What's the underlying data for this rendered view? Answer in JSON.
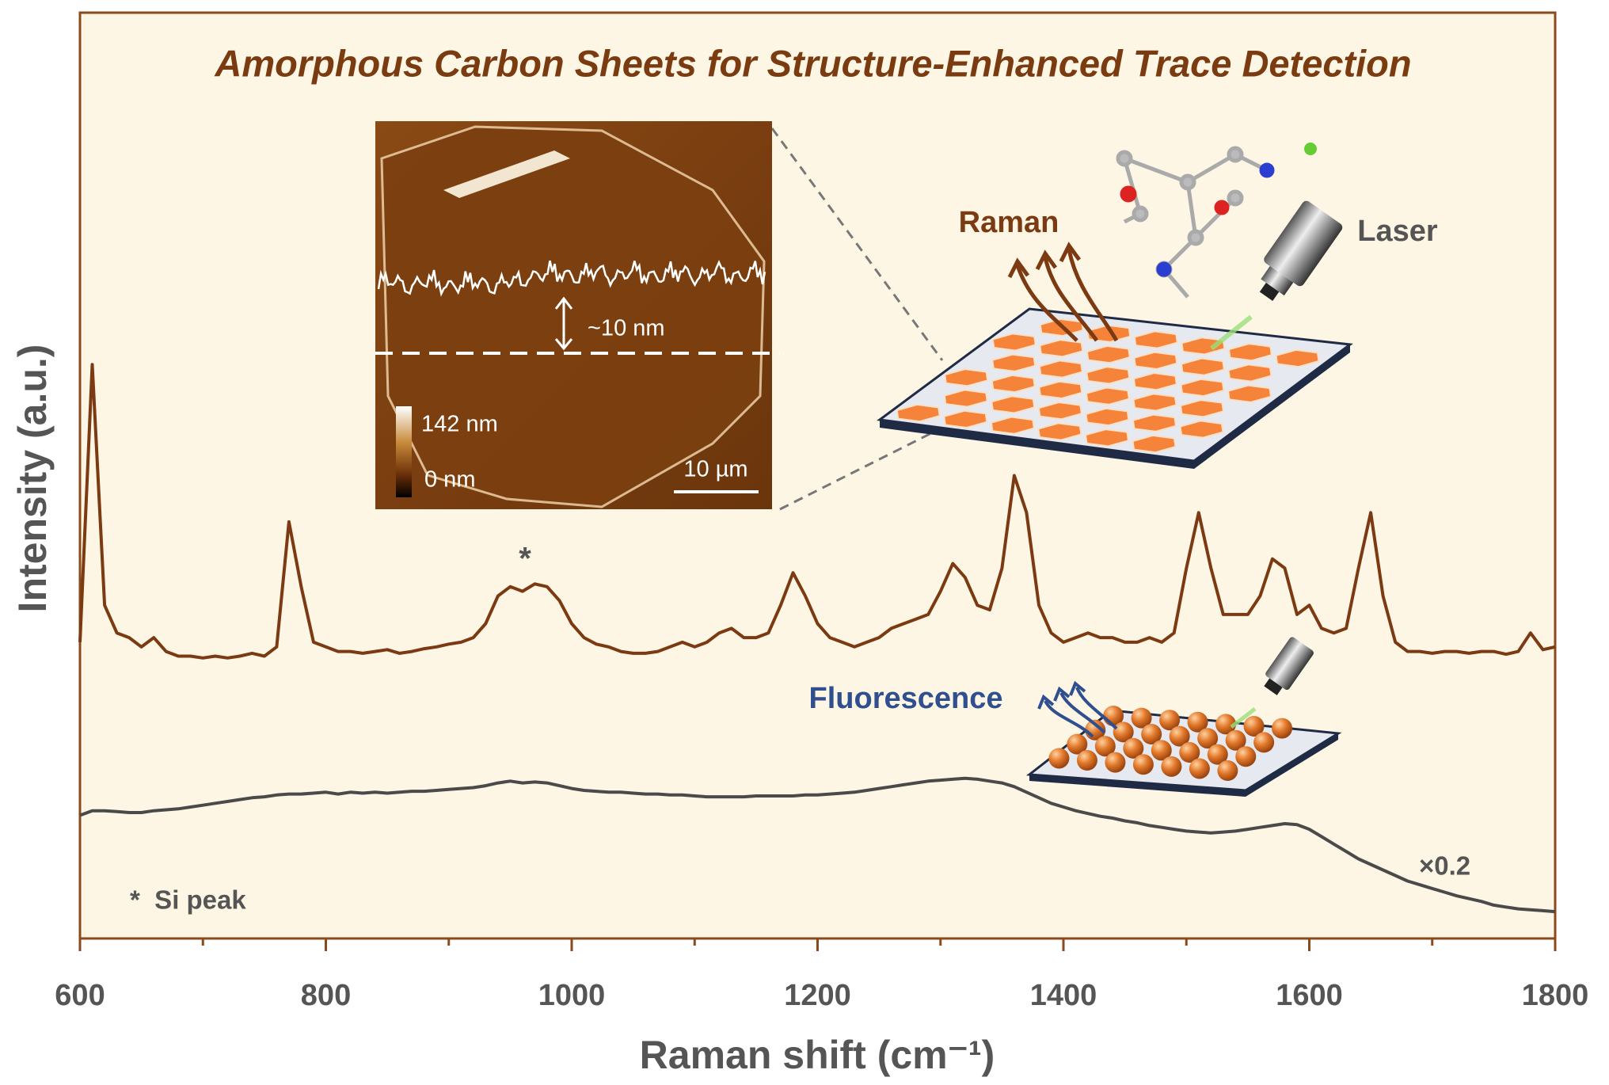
{
  "chart_data": {
    "type": "line",
    "title": "Amorphous Carbon Sheets for Structure-Enhanced Trace Detection",
    "x_label": "Raman shift (cm⁻¹)",
    "y_label": "Intensity (a.u.)",
    "x": [
      600,
      610,
      620,
      630,
      640,
      650,
      660,
      670,
      680,
      690,
      700,
      710,
      720,
      730,
      740,
      750,
      760,
      770,
      780,
      790,
      800,
      810,
      820,
      830,
      840,
      850,
      860,
      870,
      880,
      890,
      900,
      910,
      920,
      930,
      940,
      950,
      960,
      970,
      980,
      990,
      1000,
      1010,
      1020,
      1030,
      1040,
      1050,
      1060,
      1070,
      1080,
      1090,
      1100,
      1110,
      1120,
      1130,
      1140,
      1150,
      1160,
      1170,
      1180,
      1190,
      1200,
      1210,
      1220,
      1230,
      1240,
      1250,
      1260,
      1270,
      1280,
      1290,
      1300,
      1310,
      1320,
      1330,
      1340,
      1350,
      1360,
      1370,
      1380,
      1390,
      1400,
      1410,
      1420,
      1430,
      1440,
      1450,
      1460,
      1470,
      1480,
      1490,
      1500,
      1510,
      1520,
      1530,
      1540,
      1550,
      1560,
      1570,
      1580,
      1590,
      1600,
      1610,
      1620,
      1630,
      1640,
      1650,
      1660,
      1670,
      1680,
      1690,
      1700,
      1710,
      1720,
      1730,
      1740,
      1750,
      1760,
      1770,
      1780,
      1790,
      1800
    ],
    "series": [
      {
        "color": "#7b3a12",
        "values": [
          32,
          62,
          36,
          33,
          32.5,
          31.5,
          32.5,
          31,
          30.5,
          30.5,
          30.3,
          30.5,
          30.3,
          30.5,
          30.8,
          30.5,
          31.5,
          45,
          38,
          32,
          31.5,
          31,
          31,
          30.8,
          31,
          31.2,
          30.8,
          31,
          31.3,
          31.5,
          31.8,
          32,
          32.5,
          34,
          37,
          38,
          37.5,
          38.3,
          38,
          36.5,
          34,
          32.5,
          31.8,
          31.5,
          31,
          30.8,
          30.8,
          31,
          31.5,
          32,
          31.5,
          32,
          33,
          33.5,
          32.5,
          32.5,
          33,
          36,
          39.5,
          37,
          34,
          32.5,
          32,
          31.5,
          32,
          32.5,
          33.5,
          34,
          34.5,
          35,
          37.5,
          40.5,
          39,
          36,
          35.5,
          40,
          50,
          46,
          36,
          33,
          32,
          32.5,
          33,
          32.5,
          32.5,
          32,
          32,
          32.5,
          32,
          33,
          40,
          46,
          40,
          35,
          35,
          35,
          37,
          41,
          40,
          35,
          36,
          33.5,
          33,
          33.5,
          40,
          46,
          37,
          32,
          31,
          31,
          30.8,
          31,
          31,
          30.8,
          31,
          31,
          30.7,
          31,
          33,
          31.2,
          31.5
        ]
      },
      {
        "color": "#4a4a4a",
        "values": [
          13.3,
          13.8,
          13.8,
          13.7,
          13.6,
          13.6,
          13.8,
          13.9,
          14.0,
          14.2,
          14.4,
          14.6,
          14.8,
          15.0,
          15.2,
          15.3,
          15.5,
          15.6,
          15.6,
          15.7,
          15.8,
          15.6,
          15.8,
          15.7,
          15.8,
          15.7,
          15.8,
          15.9,
          15.9,
          16.0,
          16.1,
          16.2,
          16.3,
          16.5,
          16.8,
          17.0,
          16.8,
          16.9,
          16.8,
          16.5,
          16.2,
          16.0,
          15.9,
          15.8,
          15.8,
          15.7,
          15.6,
          15.6,
          15.5,
          15.5,
          15.4,
          15.3,
          15.3,
          15.3,
          15.3,
          15.4,
          15.4,
          15.4,
          15.4,
          15.5,
          15.5,
          15.6,
          15.7,
          15.8,
          16.0,
          16.2,
          16.4,
          16.6,
          16.8,
          17.0,
          17.1,
          17.2,
          17.3,
          17.2,
          17.0,
          16.8,
          16.4,
          15.8,
          15.2,
          14.6,
          14.2,
          13.8,
          13.5,
          13.2,
          13.0,
          12.7,
          12.5,
          12.2,
          12.0,
          11.8,
          11.6,
          11.5,
          11.4,
          11.5,
          11.6,
          11.8,
          12.0,
          12.2,
          12.4,
          12.3,
          11.8,
          11.0,
          10.2,
          9.4,
          8.6,
          8.0,
          7.4,
          6.8,
          6.2,
          5.8,
          5.4,
          5.0,
          4.6,
          4.3,
          4.0,
          3.6,
          3.4,
          3.2,
          3.1,
          3.0,
          2.9
        ]
      }
    ],
    "xlim": [
      600,
      1800
    ],
    "xticks": [
      600,
      800,
      1000,
      1200,
      1400,
      1600,
      1800
    ],
    "xminorticks": [
      700,
      900,
      1100,
      1300,
      1500,
      1700
    ],
    "ylim": [
      0,
      100
    ],
    "annotations": {
      "si_marker": "*",
      "si_note": "*  Si peak",
      "scale_factor": "×0.2"
    }
  },
  "inset": {
    "profile_height": "~10 nm",
    "colorbar_max": "142 nm",
    "colorbar_min": "0 nm",
    "scale_bar": "10 µm"
  },
  "schematic": {
    "raman": "Raman",
    "laser": "Laser",
    "fluorescence": "Fluorescence"
  }
}
